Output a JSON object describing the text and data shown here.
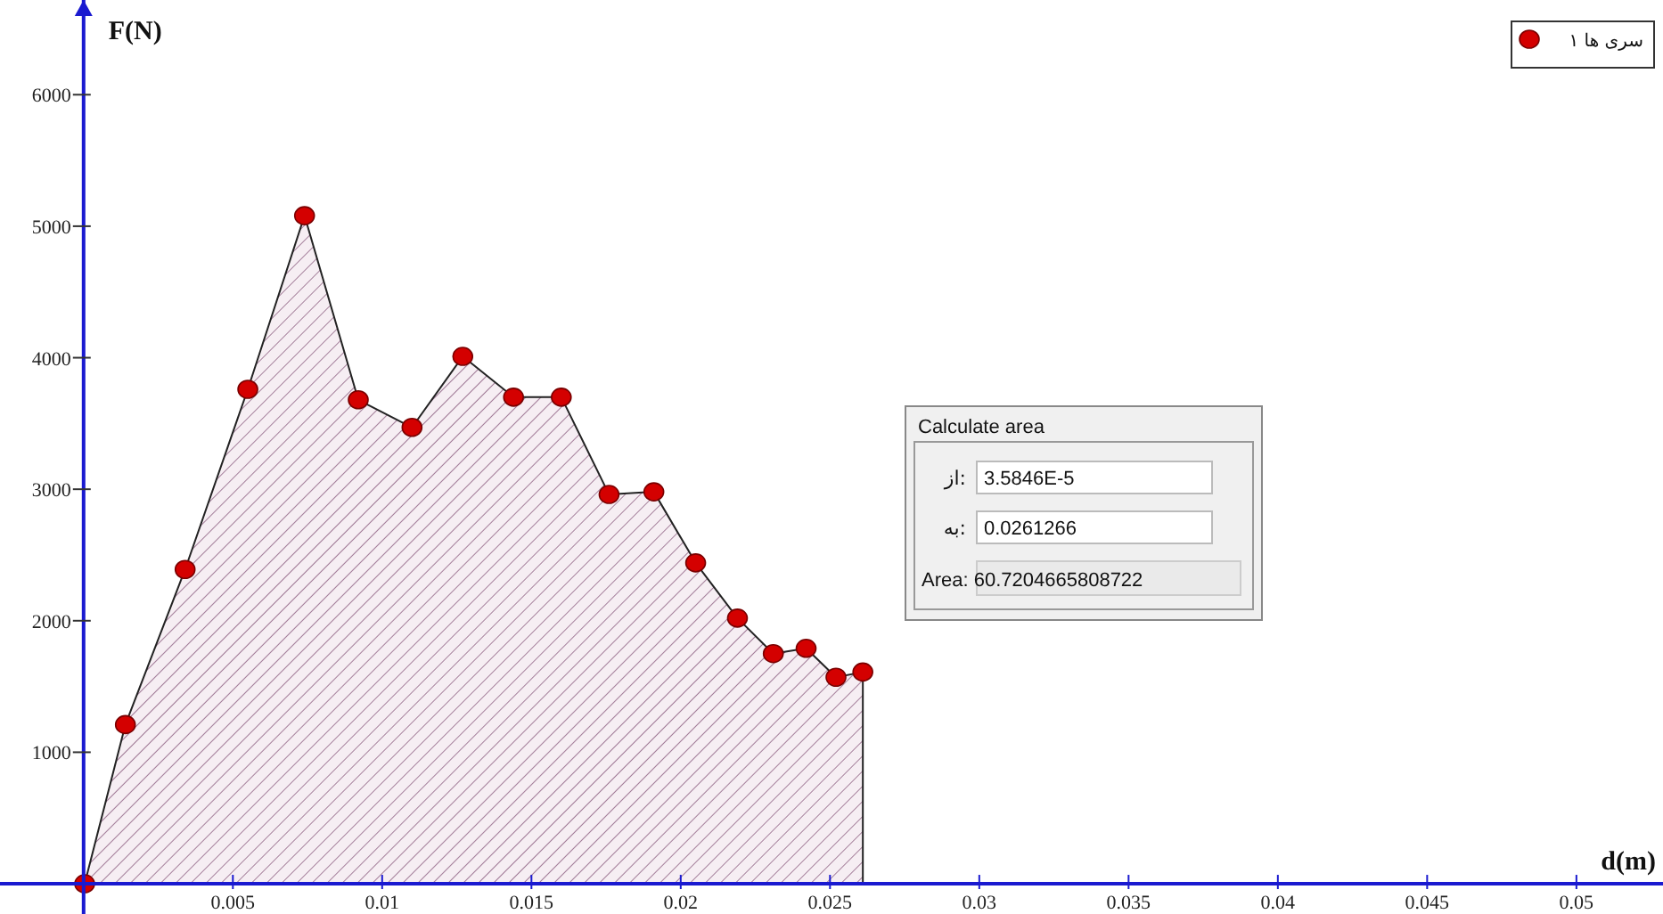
{
  "chart_data": {
    "type": "area",
    "xlabel": "d(m)",
    "ylabel": "F(N)",
    "x": [
      3.58e-05,
      0.0014,
      0.0034,
      0.0055,
      0.0074,
      0.0092,
      0.011,
      0.0127,
      0.0144,
      0.016,
      0.0176,
      0.0191,
      0.0205,
      0.0219,
      0.0231,
      0.0242,
      0.0252,
      0.0261
    ],
    "series": [
      {
        "name": "سری ها ۱",
        "color": "#d40000",
        "values": [
          0,
          1210,
          2390,
          3760,
          5080,
          3680,
          3470,
          4010,
          3700,
          3700,
          2960,
          2980,
          2440,
          2020,
          1750,
          1790,
          1570,
          1610
        ]
      }
    ],
    "xlim": [
      -0.0028,
      0.0529
    ],
    "ylim": [
      -230,
      6720
    ],
    "xticks": [
      0.005,
      0.01,
      0.015,
      0.02,
      0.025,
      0.03,
      0.035,
      0.04,
      0.045,
      0.05
    ],
    "yticks": [
      1000,
      2000,
      3000,
      4000,
      5000,
      6000
    ],
    "marker": "circle",
    "legend": "top right",
    "annotations": [
      "Calculate area",
      "از:",
      "3.5846E-5",
      "به:",
      "0.0261266",
      "Area: 60.7204665808722"
    ]
  }
}
